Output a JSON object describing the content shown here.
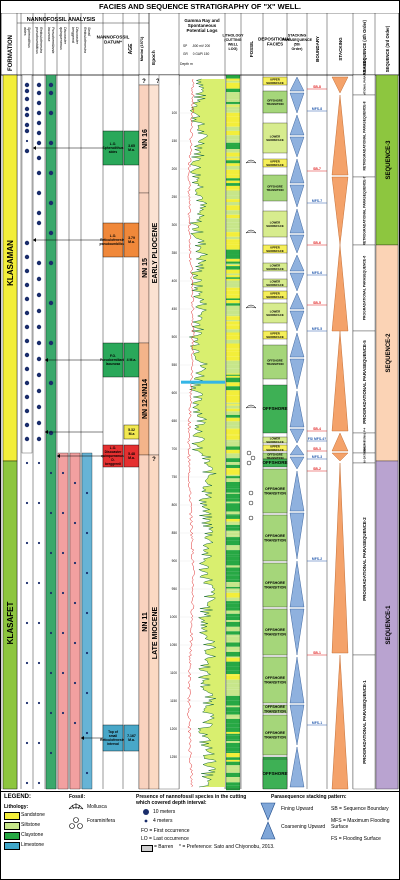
{
  "title": "FACIES AND SEQUENCE STRATIGRAPHY OF \"X\" WELL.",
  "headers": {
    "formation": "FORMATION",
    "nannofossil_analysis": "NANNOFOSSIL ANALYSIS",
    "species": [
      "Sphenolithus abies",
      "Reticulofenestra pseudoumbilicus",
      "Pseudoemiliania lacunosa",
      "Discoaster quinqueramus",
      "Discoaster berggrenii",
      "Small Reticulofenestra"
    ],
    "datum": "NANNOFOSSIL DATUM*",
    "age": "AGE",
    "zone": "Martini (1971)",
    "epoch": "Epoch",
    "logs": "Gamma Ray and Spontaneous Potential Logs",
    "lithology": "LITHOLOGY (CUTTING WELL LOG)",
    "fossil": "FOSSIL",
    "facies": "DEPOSITIONAL FACIES",
    "stacking": "STACKING PARASEQUENCE (5th Order)",
    "boundary": "BOUNDARY",
    "stacking2": "STACKING",
    "paraseq": "PARASEQUENCE (4th Order)",
    "sequence": "SEQUENCE (3rd Order)"
  },
  "log_scale": {
    "sp_label": "SP",
    "sp_range": "-500 mV 200",
    "gr_label": "GR",
    "gr_range": "0 GAPI 150",
    "depth_label": "Depth m"
  },
  "depths": [
    "100",
    "150",
    "200",
    "250",
    "300",
    "350",
    "400",
    "450",
    "500",
    "550",
    "600",
    "650",
    "700",
    "750",
    "800",
    "850",
    "900",
    "950",
    "1000",
    "1050",
    "1100",
    "1150",
    "1200",
    "1250"
  ],
  "formations": [
    "KLASAMAN",
    "KLASAFET"
  ],
  "epochs": [
    "EARLY PLIOCENE",
    "LATE MIOCENE"
  ],
  "zones": [
    "NN 16",
    "NN 15",
    "NN 12-NN14",
    "NN 11"
  ],
  "unknown_mark": "?",
  "datums": [
    {
      "name": "L.O. Sphenolithus abies",
      "age": "3.65 M.a."
    },
    {
      "name": "L.O. Reticulofenestra pseudoumbilicus",
      "age": "3.79 M.a."
    },
    {
      "name": "F.O. Pseudoemiliania lacunosa",
      "age": "4 M.a."
    },
    {
      "name": "",
      "age": "5.32 M.a"
    },
    {
      "name": "L.O. Discoaster quinqueramus, D. berggrenii",
      "age": "5.48 M.a."
    },
    {
      "name": "Top of small Reticulofenestra interval",
      "age": "7.167 M.a."
    }
  ],
  "facies_upper": [
    "UPPER SHOREFACE",
    "OFFSHORE TRANSITION",
    "LOWER SHOREFACE",
    "UPPER SHOREFACE",
    "OFFSHORE TRANSITION",
    "LOWER SHOREFACE",
    "UPPER SHOREFACE",
    "LOWER SHOREFACE",
    "LOWER SHOREFACE",
    "UPPER SHOREFACE",
    "LOWER SHOREFACE",
    "UPPER SHOREFACE",
    "OFFSHORE TRANSITION",
    "OFFSHORE",
    "LOWER SHOREFACE",
    "UPPER SHOREFACE",
    "OFFSHORE TRANSITION"
  ],
  "facies_lower": [
    "OFFSHORE",
    "OFFSHORE TRANSITION",
    "OFFSHORE TRANSITION",
    "OFFSHORE TRANSITION",
    "OFFSHORE TRANSITION",
    "OFFSHORE TRANSITION",
    "OFFSHORE TRANSITION",
    "OFFSHORE TRANSITION",
    "OFFSHORE",
    "OFFSHORE"
  ],
  "boundaries": [
    "SB-8",
    "MFS-8",
    "SB-7",
    "MFS-7",
    "SB-6",
    "MFS-6",
    "SB-5",
    "MFS-5",
    "SB-4",
    "FS/ MFS-4?",
    "SB-3",
    "MFS-3",
    "SB-2",
    "MFS-2",
    "SB-1",
    "MFS-1"
  ],
  "parasequences": [
    "RETROGRADATIONAL PARASEQUENCE-9",
    "RETROGRADATIONAL PARASEQUENCE-8",
    "RETROGRADATIONAL PARASEQUENCE-7",
    "PROGRADATIONAL PARASEQUENCE-6",
    "PROGRADATIONAL PARASEQUENCE-5",
    "PROGRADA-TIONAL P-4",
    "RETROGRA-DATIONAL P-3",
    "PROGRADATIONAL PARASEQUENCE-2",
    "PROGRADATIONAL PARASEQUENCE-1"
  ],
  "sequences": [
    "SEQUENCE-3",
    "SEQUENCE-2",
    "SEQUENCE-1"
  ],
  "legend": {
    "title": "LEGEND:",
    "lithology_label": "Lithology:",
    "lithologies": [
      "Sandstone",
      "Siltstone",
      "Claystone",
      "Limestone"
    ],
    "fossil_label": "Fossil:",
    "fossils": [
      "Mollusca",
      "Foraminifera"
    ],
    "presence_title": "Presence of nannofossil species in the cutting which covered depth interval:",
    "presence": [
      "10 meters",
      "4 meters"
    ],
    "fo": "FO = First occurrence",
    "lo": "LO = Last occurrence",
    "barren": "= Barren",
    "preference": "* = Preference: Sato and Chiyonobu, 2013.",
    "stack_title": "Parasequence stacking pattern:",
    "fining": "Fining Upward",
    "coarsening": "Coarsening Upward",
    "sb": "SB = Sequence Boundary",
    "mfs": "MFS = Maximum Flooding Surface",
    "fs": "FS = Flooding Surface"
  },
  "colors": {
    "sandstone": "#f3ee3a",
    "siltstone": "#c7e68a",
    "claystone": "#27a844",
    "limestone": "#3fa6c9",
    "datum_green": "#2aa85a",
    "datum_orange": "#f0883a",
    "datum_red": "#e53030",
    "datum_blue": "#48a7c8",
    "datum_yellow": "#f2e850",
    "zone_pink": "#f9d2be",
    "zone_peach": "#f4b48a",
    "sequence_green": "#8dc63f",
    "sequence_peach": "#fbd3b5",
    "sequence_purple": "#b9a3d0"
  }
}
